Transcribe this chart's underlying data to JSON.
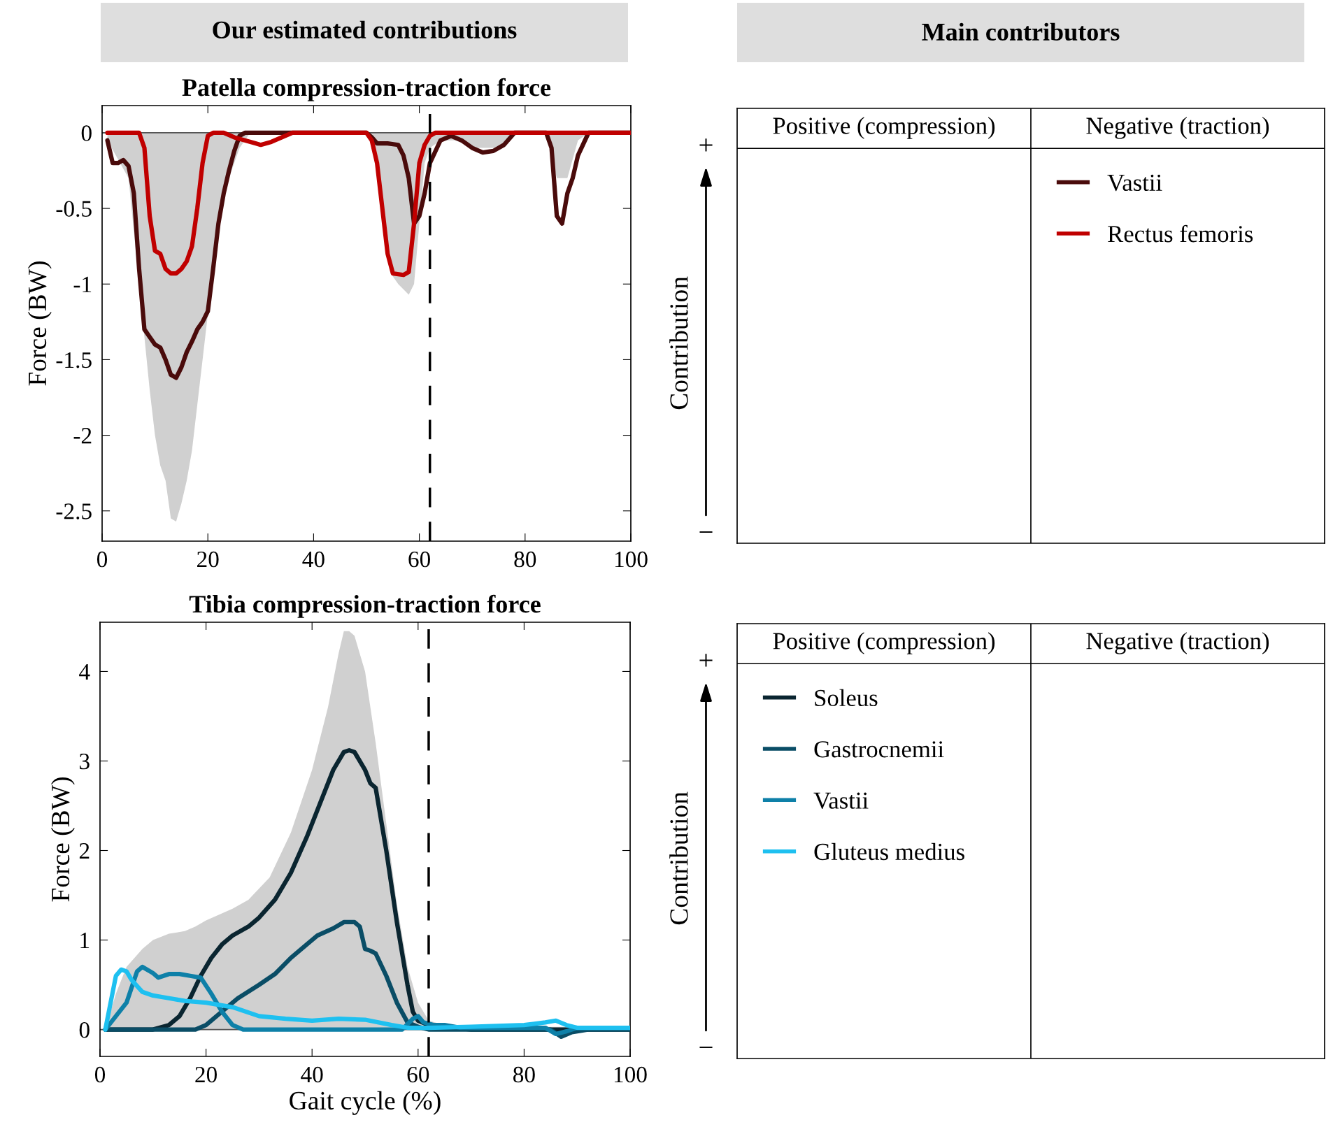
{
  "chart_data": [
    {
      "type": "line",
      "title": "Patella compression-traction force",
      "ylabel": "Force (BW)",
      "annotations": [
        "Our estimated contributions"
      ],
      "xlim": [
        0,
        100
      ],
      "xticks": [
        0,
        20,
        40,
        60,
        80,
        100
      ],
      "ylim": [
        -2.7,
        0.18
      ],
      "yticks": [
        -2.5,
        -2,
        -1.5,
        -1,
        -0.5,
        0
      ],
      "grid": false,
      "legend": "right",
      "tick_labels": "xy",
      "ref_lines": [
        {
          "axis": "y",
          "value": 0,
          "color": "#555555",
          "line_style": "solid"
        },
        {
          "axis": "x",
          "value": 62,
          "color": "#000000",
          "line_style": "dashed"
        }
      ],
      "series": [
        {
          "type": "area",
          "color": "#d0d0d0",
          "x": [
            1,
            5,
            7,
            9,
            10,
            11,
            12,
            13,
            14,
            15,
            16,
            17,
            18,
            19,
            20,
            21,
            22,
            24,
            26,
            28,
            50,
            51,
            53,
            54,
            55,
            56,
            58,
            59,
            60,
            61,
            62,
            64,
            67,
            70,
            75,
            78,
            84,
            86,
            88,
            90,
            92,
            100
          ],
          "values": [
            -0.05,
            -0.3,
            -1.0,
            -1.7,
            -2.0,
            -2.2,
            -2.3,
            -2.55,
            -2.57,
            -2.45,
            -2.3,
            -2.1,
            -1.8,
            -1.5,
            -1.2,
            -0.9,
            -0.6,
            -0.3,
            -0.1,
            0,
            0,
            -0.05,
            -0.4,
            -0.8,
            -0.95,
            -1.0,
            -1.07,
            -1.0,
            -0.6,
            -0.2,
            -0.1,
            -0.05,
            -0.05,
            -0.1,
            -0.1,
            0,
            0,
            -0.3,
            -0.3,
            -0.05,
            0,
            0
          ]
        },
        {
          "name": "Vastii",
          "color": "#4a0b0b",
          "x": [
            1,
            2,
            3,
            4,
            5,
            6,
            7,
            8,
            9,
            10,
            11,
            12,
            13,
            14,
            15,
            16,
            17,
            18,
            19,
            20,
            21,
            22,
            23,
            24,
            25,
            26,
            27,
            50,
            51,
            52,
            54,
            56,
            57,
            58,
            59,
            60,
            61,
            62,
            64,
            66,
            68,
            70,
            72,
            74,
            76,
            78,
            84,
            85,
            86,
            87,
            88,
            89,
            90,
            92,
            100
          ],
          "values": [
            -0.05,
            -0.2,
            -0.2,
            -0.18,
            -0.22,
            -0.4,
            -0.9,
            -1.3,
            -1.35,
            -1.4,
            -1.42,
            -1.5,
            -1.6,
            -1.62,
            -1.55,
            -1.45,
            -1.38,
            -1.3,
            -1.25,
            -1.18,
            -0.9,
            -0.6,
            -0.4,
            -0.25,
            -0.12,
            -0.02,
            0,
            0,
            -0.03,
            -0.07,
            -0.07,
            -0.08,
            -0.15,
            -0.3,
            -0.6,
            -0.55,
            -0.4,
            -0.2,
            -0.05,
            -0.02,
            -0.05,
            -0.1,
            -0.13,
            -0.12,
            -0.08,
            0,
            0,
            -0.1,
            -0.55,
            -0.6,
            -0.4,
            -0.3,
            -0.15,
            0,
            0
          ]
        },
        {
          "name": "Rectus femoris",
          "color": "#c00000",
          "x": [
            1,
            4,
            7,
            8,
            9,
            10,
            11,
            12,
            13,
            14,
            15,
            16,
            17,
            18,
            19,
            20,
            21,
            23,
            25,
            27,
            29,
            30,
            32,
            34,
            36,
            50,
            51,
            52,
            53,
            54,
            55,
            57,
            58,
            59,
            60,
            61,
            62,
            63,
            100
          ],
          "values": [
            0,
            0,
            0,
            -0.1,
            -0.55,
            -0.78,
            -0.8,
            -0.9,
            -0.93,
            -0.93,
            -0.9,
            -0.85,
            -0.75,
            -0.5,
            -0.2,
            -0.02,
            0,
            0,
            -0.03,
            -0.05,
            -0.07,
            -0.08,
            -0.06,
            -0.03,
            0,
            0,
            -0.05,
            -0.2,
            -0.5,
            -0.8,
            -0.93,
            -0.94,
            -0.92,
            -0.6,
            -0.2,
            -0.08,
            -0.02,
            0,
            0
          ]
        }
      ]
    },
    {
      "type": "other",
      "annotations": [
        "Main contributors",
        "Positive (compression)",
        "Negative (traction)",
        "Contribution",
        "+",
        "−"
      ]
    },
    {
      "type": "line",
      "title": "Tibia compression-traction force",
      "ylabel": "Force (BW)",
      "xlabel": "Gait cycle (%)",
      "xlim": [
        0,
        100
      ],
      "xticks": [
        0,
        20,
        40,
        60,
        80,
        100
      ],
      "ylim": [
        -0.3,
        4.55
      ],
      "yticks": [
        0,
        1,
        2,
        3,
        4
      ],
      "grid": false,
      "legend": "right",
      "ref_lines": [
        {
          "axis": "y",
          "value": 0,
          "color": "#555555",
          "line_style": "solid"
        },
        {
          "axis": "x",
          "value": 62,
          "color": "#000000",
          "line_style": "dashed"
        }
      ],
      "series": [
        {
          "type": "area",
          "color": "#d0d0d0",
          "x": [
            1,
            3,
            5,
            8,
            10,
            13,
            16,
            18,
            20,
            25,
            28,
            32,
            36,
            40,
            43,
            45,
            46,
            47,
            48,
            50,
            52,
            54,
            56,
            58,
            60,
            62,
            65,
            70,
            100
          ],
          "values": [
            0,
            0.4,
            0.7,
            0.9,
            1.0,
            1.07,
            1.1,
            1.15,
            1.22,
            1.35,
            1.45,
            1.7,
            2.2,
            2.9,
            3.6,
            4.2,
            4.45,
            4.45,
            4.4,
            4.0,
            3.2,
            2.3,
            1.4,
            0.7,
            0.3,
            0.1,
            0.05,
            0.03,
            0.03
          ]
        },
        {
          "name": "Soleus",
          "color": "#0a2530",
          "x": [
            1,
            10,
            13,
            15,
            17,
            19,
            21,
            23,
            25,
            28,
            30,
            33,
            36,
            39,
            42,
            44,
            46,
            47,
            48,
            50,
            51,
            52,
            54,
            56,
            58,
            59,
            60,
            62,
            65,
            70,
            100
          ],
          "values": [
            0,
            0,
            0.05,
            0.15,
            0.35,
            0.6,
            0.8,
            0.95,
            1.05,
            1.15,
            1.25,
            1.45,
            1.75,
            2.15,
            2.6,
            2.9,
            3.1,
            3.12,
            3.1,
            2.9,
            2.75,
            2.7,
            2.0,
            1.2,
            0.5,
            0.2,
            0.1,
            0.05,
            0.03,
            0,
            0
          ]
        },
        {
          "name": "Gastrocnemii",
          "color": "#0a4d66",
          "x": [
            1,
            18,
            20,
            23,
            26,
            30,
            33,
            36,
            39,
            41,
            44,
            46,
            48,
            49,
            50,
            51,
            52,
            54,
            56,
            58,
            60,
            62,
            85,
            87,
            89,
            92,
            100
          ],
          "values": [
            0,
            0,
            0.05,
            0.2,
            0.35,
            0.5,
            0.62,
            0.8,
            0.95,
            1.05,
            1.13,
            1.2,
            1.2,
            1.15,
            0.9,
            0.88,
            0.85,
            0.6,
            0.3,
            0.08,
            0.03,
            0,
            0,
            -0.08,
            -0.03,
            0,
            0
          ]
        },
        {
          "name": "Vastii",
          "color": "#0e80a8",
          "x": [
            1,
            3,
            5,
            7,
            8,
            10,
            11,
            13,
            15,
            17,
            19,
            21,
            23,
            25,
            27,
            57,
            59,
            60,
            61,
            63,
            65,
            68,
            84,
            86,
            88,
            90,
            100
          ],
          "values": [
            0,
            0.15,
            0.3,
            0.65,
            0.7,
            0.63,
            0.58,
            0.62,
            0.62,
            0.6,
            0.58,
            0.4,
            0.2,
            0.05,
            0,
            0,
            0.12,
            0.15,
            0.08,
            0.05,
            0.05,
            0.02,
            0.02,
            -0.05,
            -0.02,
            0.02,
            0.02
          ]
        },
        {
          "name": "Gluteus medius",
          "color": "#1ec0f0",
          "x": [
            1,
            2,
            3,
            4,
            5,
            6,
            8,
            10,
            13,
            16,
            20,
            25,
            30,
            35,
            40,
            45,
            50,
            55,
            58,
            62,
            70,
            80,
            84,
            86,
            88,
            90,
            100
          ],
          "values": [
            0,
            0.3,
            0.6,
            0.67,
            0.65,
            0.55,
            0.42,
            0.38,
            0.35,
            0.32,
            0.3,
            0.25,
            0.15,
            0.12,
            0.1,
            0.12,
            0.11,
            0.05,
            0.02,
            0.02,
            0.03,
            0.05,
            0.08,
            0.1,
            0.05,
            0.02,
            0.02
          ]
        }
      ]
    },
    {
      "type": "other",
      "annotations": [
        "Positive (compression)",
        "Negative (traction)",
        "Contribution",
        "+",
        "−"
      ]
    }
  ]
}
